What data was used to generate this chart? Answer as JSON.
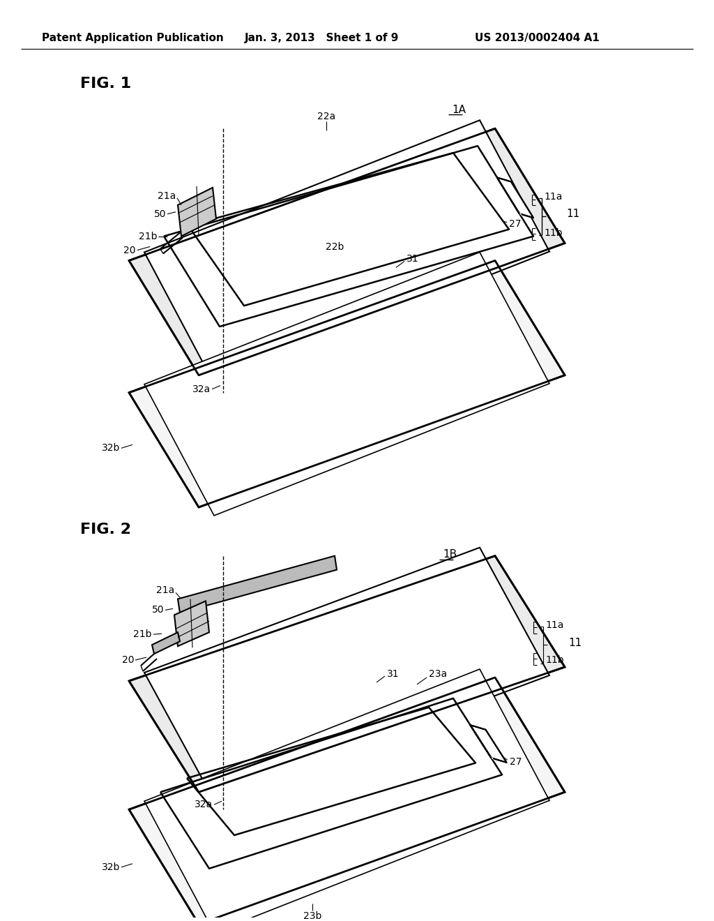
{
  "background_color": "#ffffff",
  "header_left": "Patent Application Publication",
  "header_center": "Jan. 3, 2013   Sheet 1 of 9",
  "header_right": "US 2013/0002404 A1",
  "line_color": "#000000",
  "lw_board": 2.0,
  "lw_loop": 1.5,
  "lw_thin": 1.0,
  "lw_label": 0.8,
  "font_fig": 15,
  "font_ref": 11,
  "font_label": 10
}
